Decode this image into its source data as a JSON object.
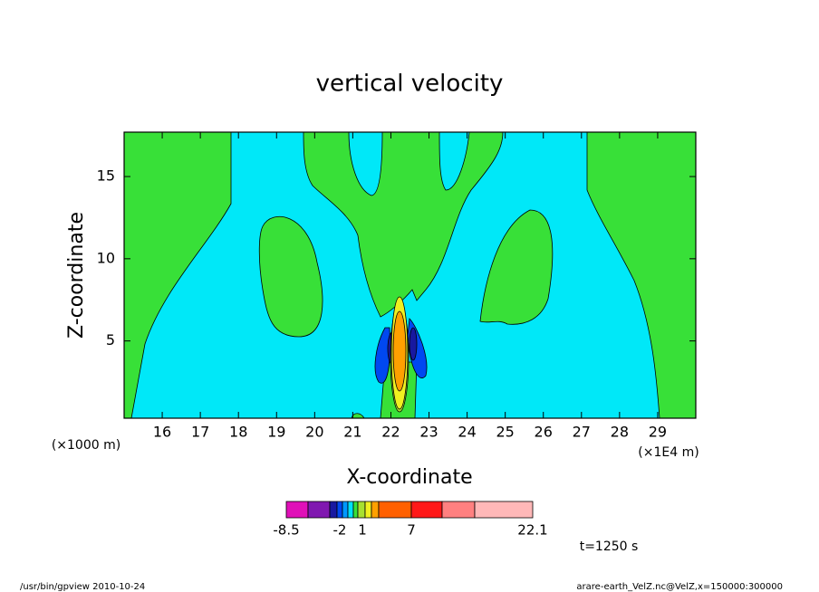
{
  "chart_data": {
    "type": "contour",
    "title": "vertical velocity",
    "x_label": "X-coordinate",
    "y_label": "Z-coordinate",
    "x_unit_note": "(×1E4 m)",
    "y_unit_note": "(×1000 m)",
    "xlim": [
      15,
      30
    ],
    "xticks": [
      16,
      17,
      18,
      19,
      20,
      21,
      22,
      23,
      24,
      25,
      26,
      27,
      28,
      29
    ],
    "ylim": [
      0.3,
      17.7
    ],
    "yticks": [
      5,
      10,
      15
    ],
    "colorbar": {
      "colors": [
        "#e010b8",
        "#8018b0",
        "#1818a0",
        "#0048f0",
        "#0098ff",
        "#00e0f8",
        "#38e038",
        "#a8e030",
        "#f0f020",
        "#ffa000",
        "#ff6000",
        "#ff1818",
        "#ff8080",
        "#ffb8b8"
      ],
      "labels": [
        -8.5,
        -2,
        1,
        7,
        22.1
      ]
    },
    "time_label": "t=1250 s",
    "footer_left": "/usr/bin/gpview   2010-10-24",
    "footer_right": "arare-earth_VelZ.nc@VelZ,x=150000:300000"
  }
}
